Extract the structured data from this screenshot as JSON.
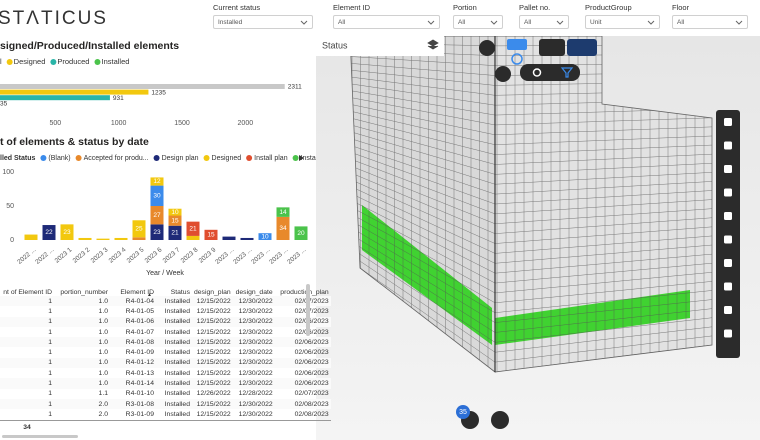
{
  "header": {
    "logo": "STΛTICUS"
  },
  "filters": [
    {
      "label": "Current status",
      "value": "Installed"
    },
    {
      "label": "Element ID",
      "value": "All"
    },
    {
      "label": "Portion",
      "value": "All"
    },
    {
      "label": "Pallet no.",
      "value": "All"
    },
    {
      "label": "ProductGroup",
      "value": "Unit"
    },
    {
      "label": "Floor",
      "value": "All"
    }
  ],
  "chart_data": [
    {
      "type": "bar",
      "orientation": "horizontal",
      "title": "signed/Produced/Installed elements",
      "categories": [
        "l",
        "Designed",
        "Produced",
        "Installed"
      ],
      "values": [
        2311,
        1235,
        931,
        35
      ],
      "colors": [
        "#c8c8c8",
        "#f2c80f",
        "#2ab5a8",
        "#4bc34b"
      ],
      "xlim": [
        0,
        2400
      ],
      "xticks": [
        500,
        1000,
        1500,
        2000
      ]
    },
    {
      "type": "bar",
      "stacked": true,
      "title": "t of elements & status by date",
      "legend_title": "lled Status",
      "xlabel": "Year / Week",
      "categories": [
        "2022 ...",
        "2022 ...",
        "2023 1",
        "2023 2",
        "2023 3",
        "2023 4",
        "2023 5",
        "2023 6",
        "2023 7",
        "2023 8",
        "2023 9",
        "2023 ...",
        "2023 ...",
        "2023 ...",
        "2023 ...",
        "2023 ..."
      ],
      "series": [
        {
          "name": "Design plan",
          "color": "#1e2a78",
          "values": [
            null,
            22,
            null,
            null,
            null,
            null,
            null,
            23,
            21,
            null,
            null,
            5,
            3,
            null,
            null,
            null
          ]
        },
        {
          "name": "Accepted for produ...",
          "color": "#e8892b",
          "values": [
            null,
            null,
            null,
            null,
            null,
            null,
            4,
            27,
            15,
            null,
            null,
            null,
            null,
            null,
            34,
            null
          ]
        },
        {
          "name": "(Blank)",
          "color": "#3b8beb",
          "values": [
            null,
            null,
            null,
            null,
            null,
            null,
            null,
            30,
            null,
            null,
            null,
            null,
            null,
            10,
            null,
            null
          ]
        },
        {
          "name": "Designed",
          "color": "#f2c80f",
          "values": [
            8,
            null,
            23,
            3,
            2,
            3,
            25,
            12,
            10,
            6,
            null,
            null,
            null,
            null,
            null,
            null
          ]
        },
        {
          "name": "Install plan",
          "color": "#e04e2f",
          "values": [
            null,
            null,
            null,
            null,
            null,
            null,
            null,
            null,
            null,
            21,
            15,
            null,
            null,
            null,
            null,
            null
          ]
        },
        {
          "name": "Installed",
          "color": "#4bc34b",
          "values": [
            null,
            null,
            null,
            null,
            null,
            null,
            null,
            null,
            null,
            null,
            null,
            null,
            null,
            null,
            14,
            20
          ]
        }
      ],
      "ylim": [
        0,
        110
      ],
      "yticks": [
        0,
        50,
        100
      ]
    }
  ],
  "table": {
    "columns": [
      "nt of Element ID",
      "portion_number",
      "Element ID",
      "Status",
      "design_plan",
      "design_date",
      "production_plan"
    ],
    "rows": [
      [
        "1",
        "1.0",
        "R4-01-04",
        "Installed",
        "12/15/2022",
        "12/30/2022",
        "02/07/2023"
      ],
      [
        "1",
        "1.0",
        "R4-01-05",
        "Installed",
        "12/15/2022",
        "12/30/2022",
        "02/07/2023"
      ],
      [
        "1",
        "1.0",
        "R4-01-06",
        "Installed",
        "12/15/2022",
        "12/30/2022",
        "02/06/2023"
      ],
      [
        "1",
        "1.0",
        "R4-01-07",
        "Installed",
        "12/15/2022",
        "12/30/2022",
        "02/06/2023"
      ],
      [
        "1",
        "1.0",
        "R4-01-08",
        "Installed",
        "12/15/2022",
        "12/30/2022",
        "02/06/2023"
      ],
      [
        "1",
        "1.0",
        "R4-01-09",
        "Installed",
        "12/15/2022",
        "12/30/2022",
        "02/06/2023"
      ],
      [
        "1",
        "1.0",
        "R4-01-12",
        "Installed",
        "12/15/2022",
        "12/30/2022",
        "02/06/2023"
      ],
      [
        "1",
        "1.0",
        "R4-01-13",
        "Installed",
        "12/15/2022",
        "12/30/2022",
        "02/06/2023"
      ],
      [
        "1",
        "1.0",
        "R4-01-14",
        "Installed",
        "12/15/2022",
        "12/30/2022",
        "02/06/2023"
      ],
      [
        "1",
        "1.1",
        "R4-01-10",
        "Installed",
        "12/26/2022",
        "12/28/2022",
        "02/07/2023"
      ],
      [
        "1",
        "2.0",
        "R3-01-08",
        "Installed",
        "12/15/2022",
        "12/30/2022",
        "02/08/2023"
      ],
      [
        "1",
        "2.0",
        "R3-01-09",
        "Installed",
        "12/15/2022",
        "12/30/2022",
        "02/08/2023"
      ]
    ],
    "total": "34"
  },
  "viewer": {
    "panel_title": "Status",
    "badge": "35"
  }
}
